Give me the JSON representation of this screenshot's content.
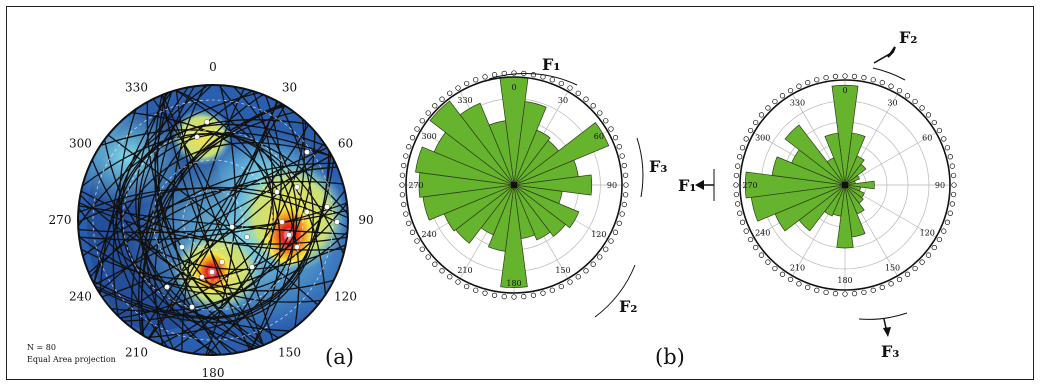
{
  "stereonet": {
    "angle_labels": [
      "0",
      "30",
      "60",
      "90",
      "120",
      "150",
      "180",
      "210",
      "240",
      "270",
      "300",
      "330"
    ],
    "info_line1": "N = 80",
    "info_line2": "Equal Area projection",
    "panel_label": "(a)"
  },
  "rose1": {
    "angle_labels": [
      "0",
      "30",
      "60",
      "90",
      "120",
      "150",
      "180",
      "210",
      "240",
      "270",
      "300",
      "330"
    ],
    "directions": [
      0,
      15,
      30,
      45,
      60,
      75,
      90,
      105,
      120,
      135,
      150,
      165,
      180,
      195,
      210,
      225,
      240,
      255,
      270,
      285,
      300,
      315,
      330,
      345
    ],
    "values": [
      1.0,
      0.78,
      0.55,
      0.52,
      0.95,
      0.6,
      0.72,
      0.45,
      0.65,
      0.6,
      0.55,
      0.5,
      0.95,
      0.62,
      0.5,
      0.68,
      0.7,
      0.85,
      0.88,
      0.92,
      0.8,
      0.98,
      0.82,
      0.6
    ],
    "fill_color": "#66b32e",
    "fracture_labels": {
      "f1": "F₁",
      "f2": "F₂",
      "f3": "F₃"
    },
    "panel_label": "(b)"
  },
  "rose2": {
    "angle_labels": [
      "0",
      "30",
      "60",
      "90",
      "120",
      "150",
      "180",
      "210",
      "240",
      "270",
      "300",
      "330"
    ],
    "directions": [
      0,
      15,
      30,
      45,
      60,
      75,
      90,
      105,
      120,
      135,
      150,
      165,
      180,
      195,
      210,
      225,
      240,
      255,
      270,
      285,
      300,
      315,
      330,
      345
    ],
    "values": [
      0.95,
      0.5,
      0.3,
      0.25,
      0.15,
      0.1,
      0.28,
      0.15,
      0.2,
      0.22,
      0.3,
      0.5,
      0.6,
      0.3,
      0.32,
      0.55,
      0.72,
      0.9,
      0.95,
      0.7,
      0.55,
      0.72,
      0.28,
      0.5
    ],
    "fill_color": "#66b32e",
    "fracture_labels": {
      "f1": "F₁",
      "f2": "F₂",
      "f3": "F₃"
    }
  }
}
